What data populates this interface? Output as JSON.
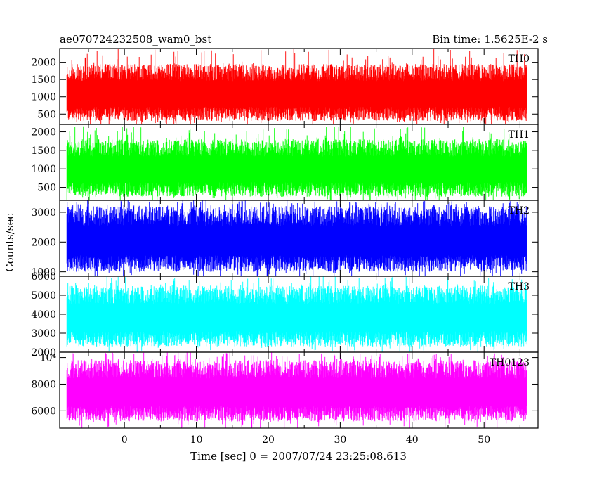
{
  "header": {
    "left_title": "ae070724232508_wam0_bst",
    "right_title": "Bin time: 1.5625E-2 s"
  },
  "chart_data": {
    "type": "line",
    "title": "ae070724232508_wam0_bst",
    "subtitle": "Bin time: 1.5625E-2 s",
    "xlabel": "Time [sec] 0 = 2007/07/24 23:25:08.613",
    "ylabel": "Counts/sec",
    "xlim": [
      -9,
      57.5
    ],
    "x_data_range": [
      -8,
      56
    ],
    "x_ticks": [
      "0",
      "10",
      "20",
      "30",
      "40",
      "50"
    ],
    "x_tick_values": [
      0,
      10,
      20,
      30,
      40,
      50
    ],
    "bin_time": 0.015625,
    "grid": false,
    "panels": [
      {
        "name": "TH0",
        "color": "#ff0000",
        "ylim": [
          200,
          2400
        ],
        "y_ticks": [
          "500",
          "1000",
          "1500",
          "2000"
        ],
        "y_tick_values": [
          500,
          1000,
          1500,
          2000
        ],
        "mean": 1020,
        "envelope_low": 300,
        "envelope_high": 1950,
        "peak": 2400
      },
      {
        "name": "TH1",
        "color": "#00ff00",
        "ylim": [
          150,
          2200
        ],
        "y_ticks": [
          "500",
          "1000",
          "1500",
          "2000"
        ],
        "y_tick_values": [
          500,
          1000,
          1500,
          2000
        ],
        "mean": 920,
        "envelope_low": 250,
        "envelope_high": 1800,
        "peak": 2150
      },
      {
        "name": "TH2",
        "color": "#0000ff",
        "ylim": [
          850,
          3400
        ],
        "y_ticks": [
          "1000",
          "2000",
          "3000"
        ],
        "y_tick_values": [
          1000,
          2000,
          3000
        ],
        "mean": 2000,
        "envelope_low": 1000,
        "envelope_high": 3200,
        "peak": 3400
      },
      {
        "name": "TH3",
        "color": "#00ffff",
        "ylim": [
          2000,
          6000
        ],
        "y_ticks": [
          "2000",
          "3000",
          "4000",
          "5000",
          "6000"
        ],
        "y_tick_values": [
          2000,
          3000,
          4000,
          5000,
          6000
        ],
        "mean": 3800,
        "envelope_low": 2300,
        "envelope_high": 5500,
        "peak": 6000
      },
      {
        "name": "TH0123",
        "color": "#ff00ff",
        "ylim": [
          4700,
          10400
        ],
        "y_ticks": [
          "6000",
          "8000",
          "10⁴"
        ],
        "y_tick_values": [
          6000,
          8000,
          10000
        ],
        "mean": 7500,
        "envelope_low": 5200,
        "envelope_high": 9800,
        "peak": 10400
      }
    ]
  }
}
